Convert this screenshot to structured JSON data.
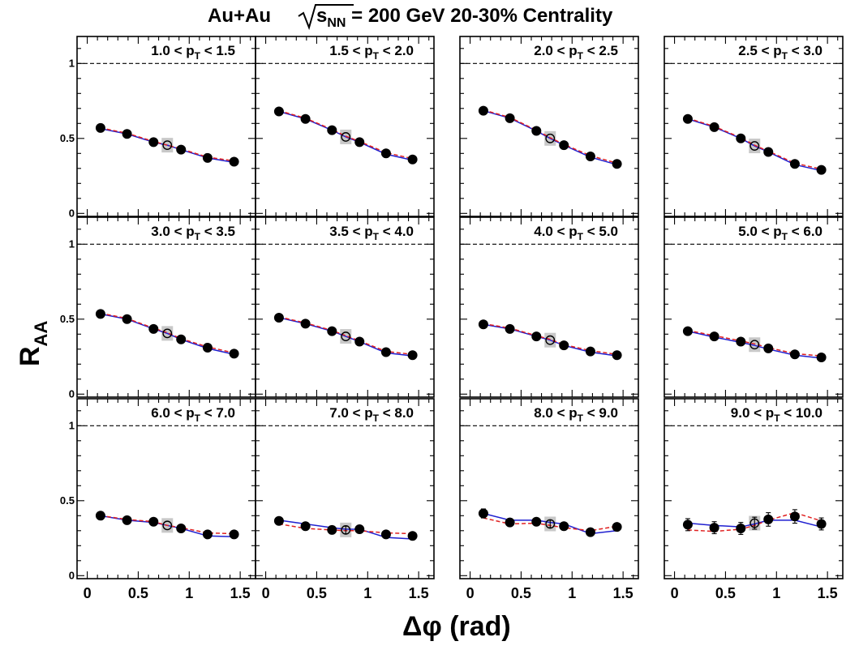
{
  "figure": {
    "title_main": "Au+Au",
    "title_rad": "s",
    "title_sub": "NN",
    "title_rest": " = 200 GeV 20-30% Centrality",
    "ylabel_main": "R",
    "ylabel_sub": "AA",
    "xlabel": "Δφ (rad)",
    "colors": {
      "solid_curve": "#1f1fd0",
      "dashed_curve": "#e02020",
      "syst_box": "#c8c8c8",
      "marker": "#000000"
    }
  },
  "chart_data": {
    "type": "scatter",
    "xlabel": "Δφ (rad)",
    "ylabel": "R_AA",
    "xlim": [
      -0.1,
      1.65
    ],
    "ylim": [
      -0.02,
      1.18
    ],
    "x_ticks": [
      "0",
      "0.5",
      "1",
      "1.5"
    ],
    "y_ticks": [
      "0",
      "0.5",
      "1"
    ],
    "reference_line_y": 1,
    "open_point_x": 0.785,
    "panels": [
      {
        "label_pre": "1.0 < p",
        "label_sub": "T",
        "label_post": " < 1.5",
        "x": [
          0.13,
          0.39,
          0.65,
          0.785,
          0.92,
          1.18,
          1.44
        ],
        "points": [
          0.57,
          0.53,
          0.475,
          0.455,
          0.425,
          0.37,
          0.345
        ],
        "errors": [
          0.01,
          0.01,
          0.01,
          0.01,
          0.01,
          0.01,
          0.01
        ],
        "solid": [
          0.565,
          0.53,
          0.475,
          0.455,
          0.425,
          0.37,
          0.34
        ],
        "dashed": [
          0.57,
          0.535,
          0.48,
          0.455,
          0.43,
          0.375,
          0.35
        ]
      },
      {
        "label_pre": "1.5 < p",
        "label_sub": "T",
        "label_post": " < 2.0",
        "x": [
          0.13,
          0.39,
          0.65,
          0.785,
          0.92,
          1.18,
          1.44
        ],
        "points": [
          0.68,
          0.63,
          0.555,
          0.51,
          0.475,
          0.4,
          0.36
        ],
        "errors": [
          0.01,
          0.01,
          0.01,
          0.01,
          0.01,
          0.01,
          0.01
        ],
        "solid": [
          0.68,
          0.63,
          0.555,
          0.51,
          0.475,
          0.395,
          0.355
        ],
        "dashed": [
          0.685,
          0.635,
          0.56,
          0.515,
          0.48,
          0.405,
          0.365
        ]
      },
      {
        "label_pre": "2.0 < p",
        "label_sub": "T",
        "label_post": " < 2.5",
        "x": [
          0.13,
          0.39,
          0.65,
          0.785,
          0.92,
          1.18,
          1.44
        ],
        "points": [
          0.685,
          0.635,
          0.55,
          0.5,
          0.455,
          0.38,
          0.33
        ],
        "errors": [
          0.01,
          0.01,
          0.01,
          0.01,
          0.01,
          0.01,
          0.01
        ],
        "solid": [
          0.685,
          0.635,
          0.55,
          0.5,
          0.455,
          0.375,
          0.325
        ],
        "dashed": [
          0.69,
          0.64,
          0.555,
          0.505,
          0.46,
          0.385,
          0.335
        ]
      },
      {
        "label_pre": "2.5 < p",
        "label_sub": "T",
        "label_post": " < 3.0",
        "x": [
          0.13,
          0.39,
          0.65,
          0.785,
          0.92,
          1.18,
          1.44
        ],
        "points": [
          0.63,
          0.575,
          0.5,
          0.45,
          0.41,
          0.33,
          0.29
        ],
        "errors": [
          0.01,
          0.01,
          0.01,
          0.01,
          0.01,
          0.01,
          0.01
        ],
        "solid": [
          0.63,
          0.575,
          0.5,
          0.45,
          0.41,
          0.325,
          0.285
        ],
        "dashed": [
          0.635,
          0.58,
          0.505,
          0.455,
          0.415,
          0.335,
          0.295
        ]
      },
      {
        "label_pre": "3.0 < p",
        "label_sub": "T",
        "label_post": " < 3.5",
        "x": [
          0.13,
          0.39,
          0.65,
          0.785,
          0.92,
          1.18,
          1.44
        ],
        "points": [
          0.535,
          0.5,
          0.435,
          0.405,
          0.365,
          0.31,
          0.27
        ],
        "errors": [
          0.01,
          0.01,
          0.01,
          0.01,
          0.01,
          0.01,
          0.01
        ],
        "solid": [
          0.535,
          0.5,
          0.435,
          0.405,
          0.365,
          0.305,
          0.265
        ],
        "dashed": [
          0.54,
          0.505,
          0.44,
          0.41,
          0.37,
          0.315,
          0.275
        ]
      },
      {
        "label_pre": "3.5 < p",
        "label_sub": "T",
        "label_post": " < 4.0",
        "x": [
          0.13,
          0.39,
          0.65,
          0.785,
          0.92,
          1.18,
          1.44
        ],
        "points": [
          0.51,
          0.47,
          0.42,
          0.385,
          0.35,
          0.28,
          0.26
        ],
        "errors": [
          0.01,
          0.01,
          0.01,
          0.01,
          0.01,
          0.01,
          0.01
        ],
        "solid": [
          0.51,
          0.47,
          0.42,
          0.385,
          0.35,
          0.275,
          0.255
        ],
        "dashed": [
          0.515,
          0.475,
          0.425,
          0.39,
          0.355,
          0.285,
          0.265
        ]
      },
      {
        "label_pre": "4.0 < p",
        "label_sub": "T",
        "label_post": " < 5.0",
        "x": [
          0.13,
          0.39,
          0.65,
          0.785,
          0.92,
          1.18,
          1.44
        ],
        "points": [
          0.465,
          0.435,
          0.385,
          0.36,
          0.325,
          0.285,
          0.26
        ],
        "errors": [
          0.01,
          0.01,
          0.01,
          0.01,
          0.01,
          0.01,
          0.01
        ],
        "solid": [
          0.465,
          0.435,
          0.385,
          0.36,
          0.325,
          0.28,
          0.255
        ],
        "dashed": [
          0.47,
          0.44,
          0.39,
          0.365,
          0.33,
          0.29,
          0.265
        ]
      },
      {
        "label_pre": "5.0 < p",
        "label_sub": "T",
        "label_post": " < 6.0",
        "x": [
          0.13,
          0.39,
          0.65,
          0.785,
          0.92,
          1.18,
          1.44
        ],
        "points": [
          0.42,
          0.385,
          0.35,
          0.33,
          0.305,
          0.265,
          0.245
        ],
        "errors": [
          0.01,
          0.01,
          0.01,
          0.01,
          0.01,
          0.01,
          0.01
        ],
        "solid": [
          0.42,
          0.38,
          0.345,
          0.325,
          0.3,
          0.26,
          0.24
        ],
        "dashed": [
          0.425,
          0.39,
          0.355,
          0.335,
          0.31,
          0.27,
          0.255
        ]
      },
      {
        "label_pre": "6.0 < p",
        "label_sub": "T",
        "label_post": " < 7.0",
        "x": [
          0.13,
          0.39,
          0.65,
          0.785,
          0.92,
          1.18,
          1.44
        ],
        "points": [
          0.4,
          0.37,
          0.36,
          0.335,
          0.315,
          0.275,
          0.275
        ],
        "errors": [
          0.01,
          0.01,
          0.01,
          0.01,
          0.01,
          0.01,
          0.01
        ],
        "solid": [
          0.4,
          0.37,
          0.355,
          0.335,
          0.315,
          0.265,
          0.26
        ],
        "dashed": [
          0.4,
          0.375,
          0.36,
          0.335,
          0.32,
          0.285,
          0.28
        ]
      },
      {
        "label_pre": "7.0 < p",
        "label_sub": "T",
        "label_post": " < 8.0",
        "x": [
          0.13,
          0.39,
          0.65,
          0.785,
          0.92,
          1.18,
          1.44
        ],
        "points": [
          0.365,
          0.33,
          0.305,
          0.305,
          0.31,
          0.275,
          0.265
        ],
        "errors": [
          0.025,
          0.025,
          0.025,
          0.025,
          0.025,
          0.02,
          0.015
        ],
        "solid": [
          0.37,
          0.345,
          0.32,
          0.31,
          0.31,
          0.255,
          0.245
        ],
        "dashed": [
          0.345,
          0.315,
          0.305,
          0.3,
          0.3,
          0.285,
          0.28
        ]
      },
      {
        "label_pre": "8.0 < p",
        "label_sub": "T",
        "label_post": " < 9.0",
        "x": [
          0.13,
          0.39,
          0.65,
          0.785,
          0.92,
          1.18,
          1.44
        ],
        "points": [
          0.415,
          0.355,
          0.36,
          0.345,
          0.33,
          0.29,
          0.325
        ],
        "errors": [
          0.03,
          0.025,
          0.025,
          0.025,
          0.025,
          0.02,
          0.02
        ],
        "solid": [
          0.415,
          0.37,
          0.37,
          0.355,
          0.345,
          0.28,
          0.3
        ],
        "dashed": [
          0.385,
          0.345,
          0.35,
          0.335,
          0.32,
          0.3,
          0.33
        ]
      },
      {
        "label_pre": "9.0 < p",
        "label_sub": "T",
        "label_post": " < 10.0",
        "x": [
          0.13,
          0.39,
          0.65,
          0.785,
          0.92,
          1.18,
          1.44
        ],
        "points": [
          0.34,
          0.32,
          0.315,
          0.35,
          0.375,
          0.395,
          0.345
        ],
        "errors": [
          0.04,
          0.04,
          0.04,
          0.04,
          0.045,
          0.045,
          0.04
        ],
        "solid": [
          0.35,
          0.335,
          0.325,
          0.345,
          0.37,
          0.37,
          0.325
        ],
        "dashed": [
          0.305,
          0.295,
          0.31,
          0.335,
          0.37,
          0.42,
          0.365
        ]
      }
    ]
  }
}
